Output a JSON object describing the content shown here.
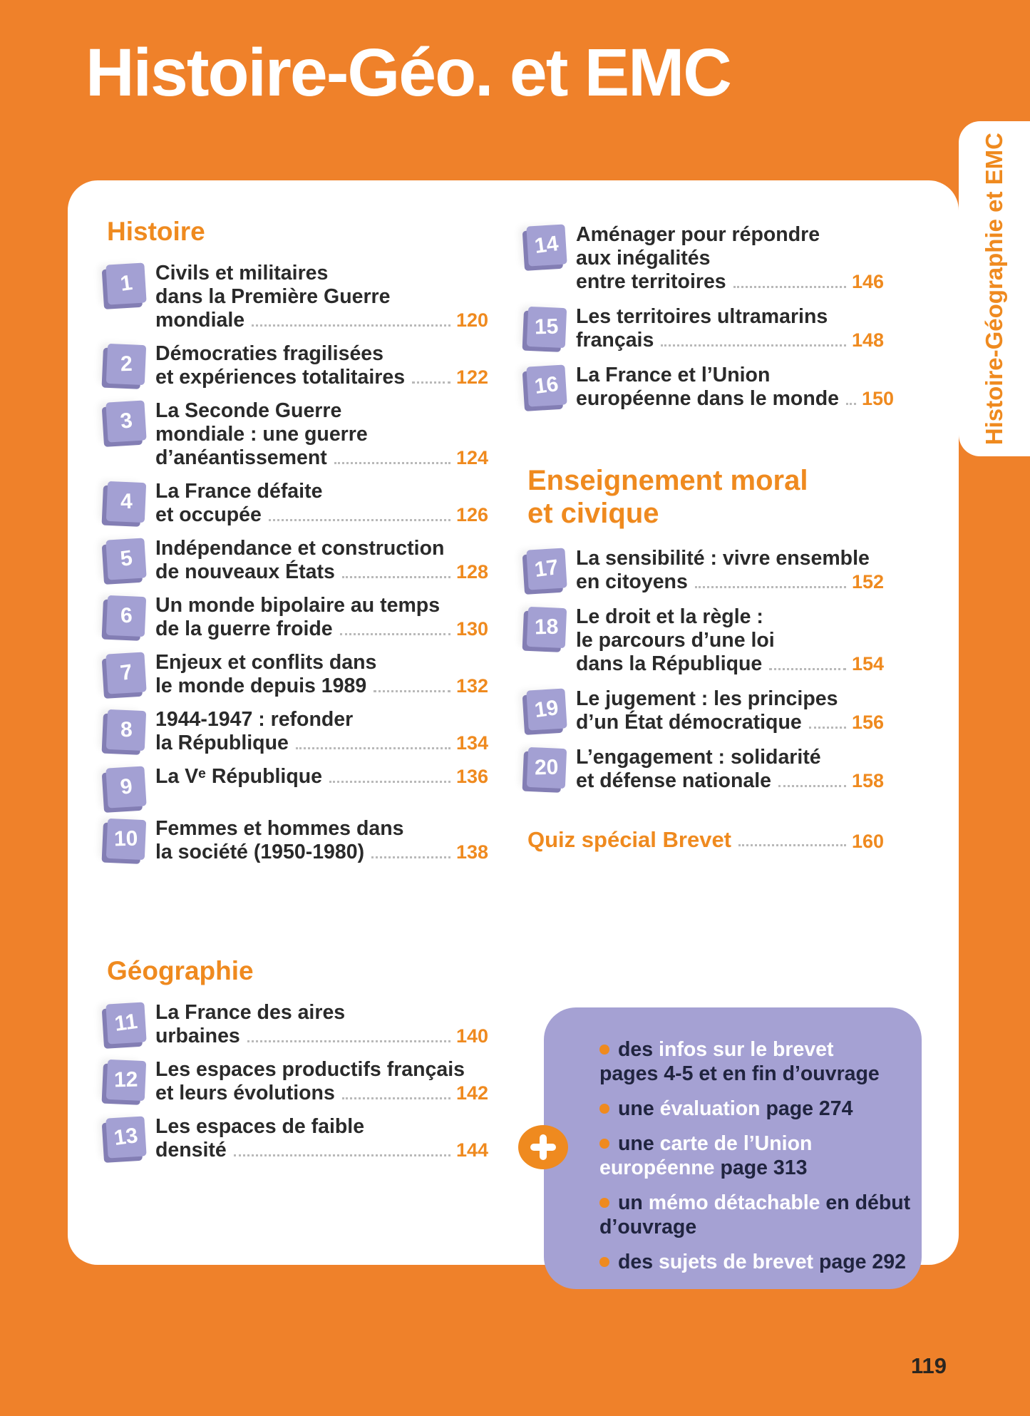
{
  "page": {
    "title": "Histoire-Géo. et EMC",
    "side_tab": "Histoire-Géographie et EMC",
    "folio": "119"
  },
  "histoire": {
    "heading": "Histoire",
    "items": [
      {
        "num": "1",
        "lines": [
          "Civils et militaires",
          "dans la Première Guerre",
          "mondiale"
        ],
        "page": "120"
      },
      {
        "num": "2",
        "lines": [
          "Démocraties fragilisées",
          "et expériences totalitaires"
        ],
        "page": "122"
      },
      {
        "num": "3",
        "lines": [
          "La Seconde Guerre",
          "mondiale : une guerre",
          "d’anéantissement"
        ],
        "page": "124"
      },
      {
        "num": "4",
        "lines": [
          "La France défaite",
          "et occupée"
        ],
        "page": "126"
      },
      {
        "num": "5",
        "lines": [
          "Indépendance et construction",
          "de nouveaux États"
        ],
        "page": "128"
      },
      {
        "num": "6",
        "lines": [
          "Un monde bipolaire au temps",
          "de la guerre froide"
        ],
        "page": "130"
      },
      {
        "num": "7",
        "lines": [
          "Enjeux et conflits dans",
          "le monde depuis 1989"
        ],
        "page": "132"
      },
      {
        "num": "8",
        "lines": [
          "1944-1947 : refonder",
          "la République"
        ],
        "page": "134"
      },
      {
        "num": "9",
        "lines": [
          "La Vᵉ République"
        ],
        "page": "136"
      },
      {
        "num": "10",
        "lines": [
          "Femmes et hommes dans",
          "la société (1950-1980)"
        ],
        "page": "138"
      }
    ]
  },
  "geographie": {
    "heading": "Géographie",
    "items": [
      {
        "num": "11",
        "lines": [
          "La France des aires",
          "urbaines"
        ],
        "page": "140"
      },
      {
        "num": "12",
        "lines": [
          "Les espaces productifs français",
          "et leurs évolutions"
        ],
        "page": "142"
      },
      {
        "num": "13",
        "lines": [
          "Les espaces de faible",
          "densité"
        ],
        "page": "144"
      }
    ]
  },
  "geographie_suite": {
    "items": [
      {
        "num": "14",
        "lines": [
          "Aménager pour répondre",
          "aux inégalités",
          "entre territoires"
        ],
        "page": "146"
      },
      {
        "num": "15",
        "lines": [
          "Les territoires ultramarins",
          "français"
        ],
        "page": "148"
      },
      {
        "num": "16",
        "lines": [
          "La France et l’Union",
          "européenne dans le monde"
        ],
        "page": "150"
      }
    ]
  },
  "emc": {
    "heading_line1": "Enseignement moral",
    "heading_line2": "et civique",
    "items": [
      {
        "num": "17",
        "lines": [
          "La sensibilité : vivre ensemble",
          "en citoyens"
        ],
        "page": "152"
      },
      {
        "num": "18",
        "lines": [
          "Le droit et la règle :",
          "le parcours d’une loi",
          "dans la République"
        ],
        "page": "154"
      },
      {
        "num": "19",
        "lines": [
          "Le jugement : les principes",
          "d’un État démocratique"
        ],
        "page": "156"
      },
      {
        "num": "20",
        "lines": [
          "L’engagement : solidarité",
          "et défense nationale"
        ],
        "page": "158"
      }
    ]
  },
  "quiz": {
    "label": "Quiz spécial Brevet",
    "page": "160"
  },
  "extras_box": {
    "plus_icon": "+",
    "items": [
      {
        "lines": [
          [
            {
              "t": "des ",
              "w": 0
            },
            {
              "t": "infos sur le brevet",
              "w": 1
            }
          ],
          [
            {
              "t": "pages 4-5 et en fin d’ouvrage",
              "w": 0
            }
          ]
        ]
      },
      {
        "lines": [
          [
            {
              "t": "une ",
              "w": 0
            },
            {
              "t": "évaluation",
              "w": 1
            },
            {
              "t": " page 274",
              "w": 0
            }
          ]
        ]
      },
      {
        "lines": [
          [
            {
              "t": "une ",
              "w": 0
            },
            {
              "t": "carte de l’Union",
              "w": 1
            }
          ],
          [
            {
              "t": "européenne",
              "w": 1
            },
            {
              "t": " page 313",
              "w": 0
            }
          ]
        ]
      },
      {
        "lines": [
          [
            {
              "t": "un ",
              "w": 0
            },
            {
              "t": "mémo détachable",
              "w": 1
            },
            {
              "t": " en début",
              "w": 0
            }
          ],
          [
            {
              "t": "d’ouvrage",
              "w": 0
            }
          ]
        ]
      },
      {
        "lines": [
          [
            {
              "t": "des ",
              "w": 0
            },
            {
              "t": "sujets de brevet",
              "w": 1
            },
            {
              "t": " page 292",
              "w": 0
            }
          ]
        ]
      }
    ]
  },
  "colors": {
    "background_orange": "#ef812a",
    "accent_orange": "#ef8a1f",
    "badge_lavender": "#a3a0d3",
    "extras_box_lavender": "#a5a1d3",
    "dark_navy": "#20243f",
    "body_text": "#2a2a2a"
  }
}
